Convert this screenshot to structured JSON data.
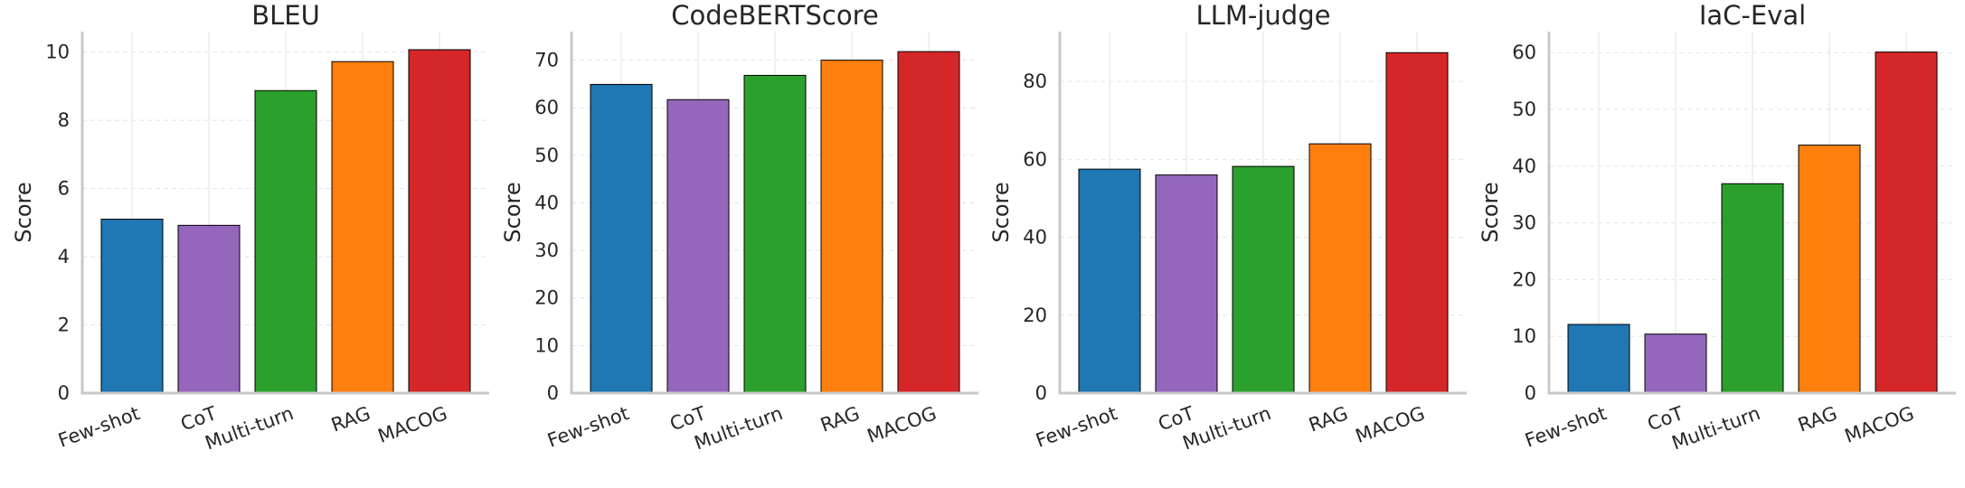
{
  "chart_data": [
    {
      "type": "bar",
      "title": "BLEU",
      "ylabel": "Score",
      "xlabel": "",
      "ylim": [
        0,
        10.6
      ],
      "yticks": [
        0,
        2,
        4,
        6,
        8,
        10
      ],
      "categories": [
        "Few-shot",
        "CoT",
        "Multi-turn",
        "RAG",
        "MACOG"
      ],
      "values": [
        5.1,
        4.92,
        8.87,
        9.72,
        10.07
      ],
      "grid": true
    },
    {
      "type": "bar",
      "title": "CodeBERTScore",
      "ylabel": "Score",
      "xlabel": "",
      "ylim": [
        0,
        76
      ],
      "yticks": [
        0,
        10,
        20,
        30,
        40,
        50,
        60,
        70
      ],
      "categories": [
        "Few-shot",
        "CoT",
        "Multi-turn",
        "RAG",
        "MACOG"
      ],
      "values": [
        64.9,
        61.7,
        66.8,
        70.0,
        71.8
      ],
      "grid": true
    },
    {
      "type": "bar",
      "title": "LLM-judge",
      "ylabel": "Score",
      "xlabel": "",
      "ylim": [
        0,
        92.8
      ],
      "yticks": [
        0,
        20,
        40,
        60,
        80
      ],
      "categories": [
        "Few-shot",
        "CoT",
        "Multi-turn",
        "RAG",
        "MACOG"
      ],
      "values": [
        57.5,
        56.0,
        58.2,
        64.0,
        87.4
      ],
      "grid": true
    },
    {
      "type": "bar",
      "title": "IaC-Eval",
      "ylabel": "Score",
      "xlabel": "",
      "ylim": [
        0,
        63.7
      ],
      "yticks": [
        0,
        10,
        20,
        30,
        40,
        50,
        60
      ],
      "categories": [
        "Few-shot",
        "CoT",
        "Multi-turn",
        "RAG",
        "MACOG"
      ],
      "values": [
        12.1,
        10.4,
        36.9,
        43.7,
        60.1
      ],
      "grid": true
    }
  ],
  "colors": [
    "#1f77b4",
    "#9467bd",
    "#2ca02c",
    "#ff7f0e",
    "#d62728"
  ]
}
